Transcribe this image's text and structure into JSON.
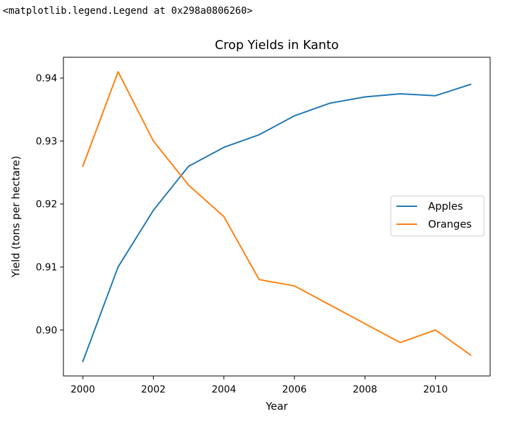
{
  "output_text": "<matplotlib.legend.Legend at 0x298a0806260>",
  "chart_data": {
    "type": "line",
    "title": "Crop Yields in Kanto",
    "xlabel": "Year",
    "ylabel": "Yield (tons per hectare)",
    "x": [
      2000,
      2001,
      2002,
      2003,
      2004,
      2005,
      2006,
      2007,
      2008,
      2009,
      2010,
      2011
    ],
    "xticks": [
      "2000",
      "2002",
      "2004",
      "2006",
      "2008",
      "2010"
    ],
    "yticks": [
      "0.90",
      "0.91",
      "0.92",
      "0.93",
      "0.94"
    ],
    "xlim": [
      1999.45,
      2011.55
    ],
    "ylim": [
      0.8927,
      0.9433
    ],
    "grid": false,
    "legend_position": "center-right",
    "series": [
      {
        "name": "Apples",
        "color": "#1f77b4",
        "values": [
          0.895,
          0.91,
          0.919,
          0.926,
          0.929,
          0.931,
          0.934,
          0.936,
          0.937,
          0.9375,
          0.9372,
          0.939
        ]
      },
      {
        "name": "Oranges",
        "color": "#ff7f0e",
        "values": [
          0.926,
          0.941,
          0.93,
          0.923,
          0.918,
          0.908,
          0.907,
          0.904,
          0.901,
          0.898,
          0.9,
          0.896
        ]
      }
    ]
  }
}
